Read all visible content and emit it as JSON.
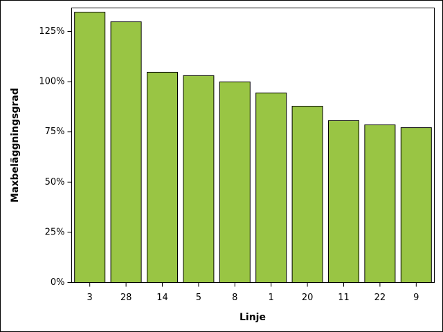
{
  "chart_data": {
    "type": "bar",
    "x_label": "Linje",
    "y_label": "Maxbeläggningsgrad",
    "categories": [
      "3",
      "28",
      "14",
      "5",
      "8",
      "1",
      "20",
      "11",
      "22",
      "9"
    ],
    "values": [
      134.6,
      129.8,
      104.7,
      103,
      99.9,
      94.4,
      87.8,
      80.6,
      78.5,
      77.1
    ],
    "color": "#99c544",
    "ylim": [
      0,
      136.7
    ],
    "yticks": [
      {
        "value": 0,
        "label": "0%"
      },
      {
        "value": 25,
        "label": "25%"
      },
      {
        "value": 50,
        "label": "50%"
      },
      {
        "value": 75,
        "label": "75%"
      },
      {
        "value": 100,
        "label": "100%"
      },
      {
        "value": 125,
        "label": "125%"
      }
    ],
    "grid": false
  }
}
